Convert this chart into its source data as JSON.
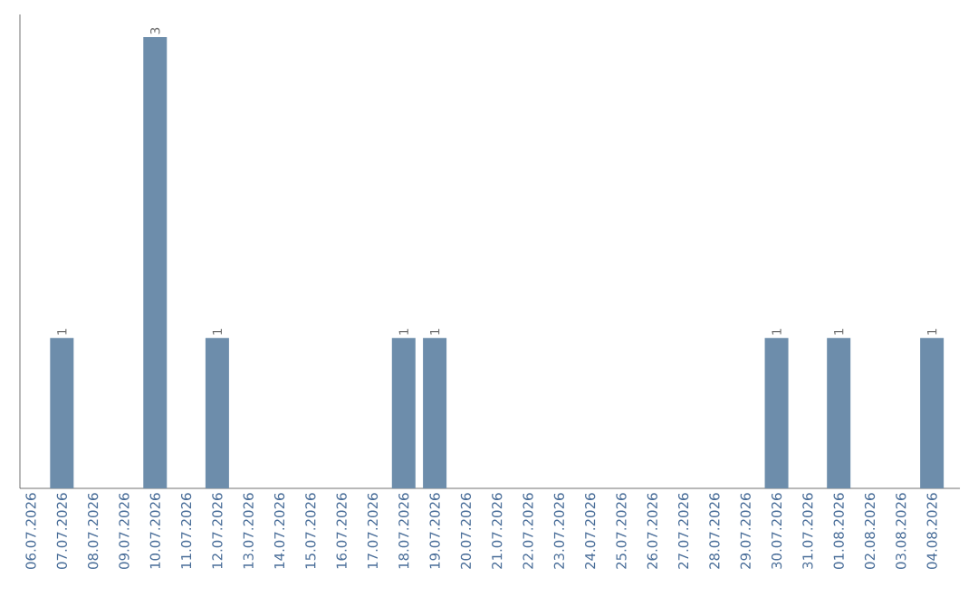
{
  "chart_data": {
    "type": "bar",
    "categories": [
      "06.07.2026",
      "07.07.2026",
      "08.07.2026",
      "09.07.2026",
      "10.07.2026",
      "11.07.2026",
      "12.07.2026",
      "13.07.2026",
      "14.07.2026",
      "15.07.2026",
      "16.07.2026",
      "17.07.2026",
      "18.07.2026",
      "19.07.2026",
      "20.07.2026",
      "21.07.2026",
      "22.07.2026",
      "23.07.2026",
      "24.07.2026",
      "25.07.2026",
      "26.07.2026",
      "27.07.2026",
      "28.07.2026",
      "29.07.2026",
      "30.07.2026",
      "31.07.2026",
      "01.08.2026",
      "02.08.2026",
      "03.08.2026",
      "04.08.2026"
    ],
    "values": [
      0,
      1,
      0,
      0,
      3,
      0,
      1,
      0,
      0,
      0,
      0,
      0,
      1,
      1,
      0,
      0,
      0,
      0,
      0,
      0,
      0,
      0,
      0,
      0,
      1,
      0,
      1,
      0,
      0,
      1
    ],
    "color": "#6d8dab",
    "value_labels": [
      null,
      "1",
      null,
      null,
      "3",
      null,
      "1",
      null,
      null,
      null,
      null,
      null,
      "1",
      "1",
      null,
      null,
      null,
      null,
      null,
      null,
      null,
      null,
      null,
      null,
      "1",
      null,
      "1",
      null,
      null,
      "1"
    ]
  }
}
